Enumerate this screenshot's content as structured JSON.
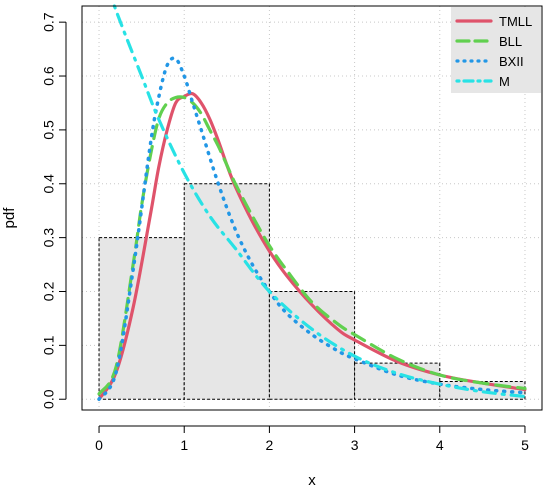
{
  "chart_data": {
    "type": "line",
    "title": "",
    "xlabel": "x",
    "ylabel": "pdf",
    "xlim": [
      -0.2,
      5.2
    ],
    "ylim": [
      -0.02,
      0.73
    ],
    "x_ticks": [
      "0",
      "1",
      "2",
      "3",
      "4",
      "5"
    ],
    "y_ticks": [
      "0.0",
      "0.1",
      "0.2",
      "0.3",
      "0.4",
      "0.5",
      "0.6",
      "0.7"
    ],
    "grid": true,
    "legend_position": "top-right",
    "histogram": {
      "bins": [
        [
          0,
          1
        ],
        [
          1,
          2
        ],
        [
          2,
          3
        ],
        [
          3,
          4
        ],
        [
          4,
          5
        ]
      ],
      "densities": [
        0.3,
        0.4,
        0.2,
        0.067,
        0.033
      ],
      "fill": "#e6e6e6"
    },
    "series": [
      {
        "name": "TMLL",
        "color": "#df536b",
        "style": "solid",
        "x": [
          0,
          0.2,
          0.4,
          0.6,
          0.7,
          0.8,
          0.9,
          1.0,
          1.1,
          1.2,
          1.3,
          1.4,
          1.5,
          1.6,
          1.8,
          2.0,
          2.2,
          2.5,
          2.8,
          3.0,
          3.5,
          4.0,
          4.5,
          5.0
        ],
        "y": [
          0.0,
          0.05,
          0.17,
          0.34,
          0.43,
          0.5,
          0.55,
          0.562,
          0.567,
          0.55,
          0.52,
          0.48,
          0.435,
          0.395,
          0.33,
          0.275,
          0.23,
          0.175,
          0.13,
          0.11,
          0.07,
          0.045,
          0.03,
          0.018
        ]
      },
      {
        "name": "BLL",
        "color": "#61d04f",
        "style": "dashed",
        "x": [
          0,
          0.2,
          0.4,
          0.5,
          0.6,
          0.7,
          0.8,
          0.9,
          1.0,
          1.1,
          1.2,
          1.3,
          1.4,
          1.5,
          1.6,
          1.8,
          2.0,
          2.2,
          2.5,
          2.8,
          3.0,
          3.5,
          4.0,
          4.5,
          5.0
        ],
        "y": [
          0.01,
          0.06,
          0.25,
          0.36,
          0.45,
          0.52,
          0.55,
          0.56,
          0.56,
          0.55,
          0.53,
          0.5,
          0.47,
          0.435,
          0.4,
          0.34,
          0.285,
          0.24,
          0.18,
          0.14,
          0.12,
          0.075,
          0.045,
          0.03,
          0.02
        ]
      },
      {
        "name": "BXII",
        "color": "#2297e6",
        "style": "dotted",
        "x": [
          0,
          0.2,
          0.4,
          0.6,
          0.7,
          0.8,
          0.9,
          1.0,
          1.1,
          1.2,
          1.4,
          1.6,
          1.8,
          2.0,
          2.2,
          2.5,
          2.8,
          3.0,
          3.5,
          4.0,
          4.5,
          5.0
        ],
        "y": [
          0.0,
          0.05,
          0.24,
          0.47,
          0.56,
          0.62,
          0.632,
          0.6,
          0.55,
          0.5,
          0.4,
          0.315,
          0.25,
          0.2,
          0.16,
          0.12,
          0.09,
          0.075,
          0.045,
          0.028,
          0.018,
          0.012
        ]
      },
      {
        "name": "M",
        "color": "#28e2e5",
        "style": "dotdash",
        "x": [
          0.18,
          0.3,
          0.5,
          0.7,
          1.0,
          1.3,
          1.6,
          2.0,
          2.5,
          3.0,
          3.5,
          4.0,
          4.5,
          5.0
        ],
        "y": [
          0.73,
          0.68,
          0.6,
          0.52,
          0.42,
          0.34,
          0.28,
          0.2,
          0.13,
          0.08,
          0.048,
          0.028,
          0.014,
          0.005
        ]
      }
    ]
  }
}
